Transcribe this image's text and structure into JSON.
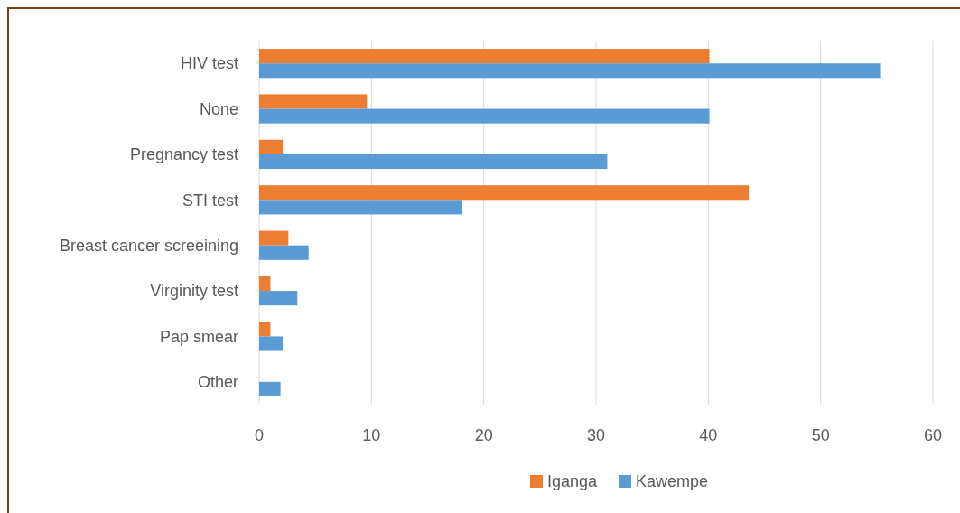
{
  "chart_data": {
    "type": "bar",
    "orientation": "horizontal",
    "categories": [
      "HIV test",
      "None",
      "Pregnancy test",
      "STI test",
      "Breast cancer screeining",
      "Virginity test",
      "Pap smear",
      "Other"
    ],
    "series": [
      {
        "name": "Iganga",
        "color": "#ed7d31",
        "values": [
          40.1,
          9.6,
          2.1,
          43.6,
          2.6,
          1.0,
          1.0,
          null
        ]
      },
      {
        "name": "Kawempe",
        "color": "#5b9bd5",
        "values": [
          55.3,
          40.1,
          31.0,
          18.1,
          4.4,
          3.4,
          2.1,
          1.9
        ]
      }
    ],
    "xlim": [
      0,
      60
    ],
    "xticks": [
      0,
      10,
      20,
      30,
      40,
      50,
      60
    ],
    "grid": "x",
    "legend": "bottom"
  }
}
